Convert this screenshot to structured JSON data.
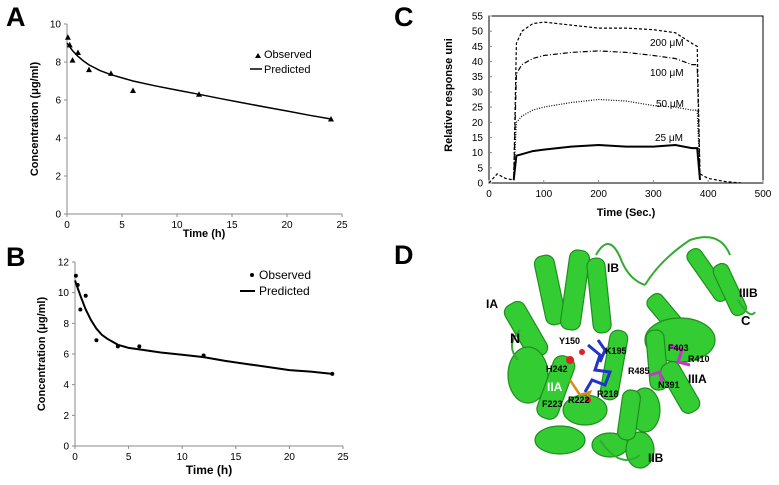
{
  "panels": {
    "a": "A",
    "b": "B",
    "c": "C",
    "d": "D"
  },
  "chart_data": [
    {
      "panel": "A",
      "type": "scatter",
      "xlabel": "Time (h)",
      "ylabel": "Concentration (μg/ml)",
      "xlim": [
        0,
        25
      ],
      "ylim": [
        0,
        10
      ],
      "xticks": [
        0,
        5,
        10,
        15,
        20,
        25
      ],
      "yticks": [
        0,
        2,
        4,
        6,
        8,
        10
      ],
      "grid": false,
      "legend_position": "top-right",
      "series": [
        {
          "name": "Observed",
          "marker": "triangle",
          "x": [
            0.083,
            0.25,
            0.5,
            1,
            2,
            4,
            6,
            12,
            24
          ],
          "y": [
            9.3,
            8.9,
            8.1,
            8.5,
            7.6,
            7.4,
            6.5,
            6.3,
            5.0
          ]
        },
        {
          "name": "Predicted",
          "marker": "line",
          "x": [
            0,
            0.5,
            1,
            1.5,
            2,
            3,
            4,
            6,
            8,
            10,
            12,
            14,
            16,
            18,
            20,
            22,
            24
          ],
          "y": [
            9.0,
            8.6,
            8.3,
            8.05,
            7.85,
            7.55,
            7.33,
            7.0,
            6.75,
            6.52,
            6.3,
            6.07,
            5.85,
            5.63,
            5.42,
            5.2,
            5.0
          ]
        }
      ]
    },
    {
      "panel": "B",
      "type": "scatter",
      "xlabel": "Time (h)",
      "ylabel": "Concentration (μg/ml)",
      "xlim": [
        0,
        25
      ],
      "ylim": [
        0,
        12
      ],
      "xticks": [
        0,
        5,
        10,
        15,
        20,
        25
      ],
      "yticks": [
        0,
        2,
        4,
        6,
        8,
        10,
        12
      ],
      "grid": false,
      "legend_position": "top-right",
      "series": [
        {
          "name": "Observed",
          "marker": "dot",
          "x": [
            0.083,
            0.25,
            0.5,
            1,
            2,
            4,
            6,
            12,
            24
          ],
          "y": [
            11.1,
            10.5,
            8.9,
            9.8,
            6.9,
            6.5,
            6.5,
            5.9,
            4.7
          ]
        },
        {
          "name": "Predicted",
          "marker": "line",
          "x": [
            0,
            0.5,
            1,
            1.5,
            2,
            2.5,
            3,
            4,
            5,
            6,
            8,
            10,
            12,
            14,
            16,
            18,
            20,
            22,
            24
          ],
          "y": [
            10.8,
            9.8,
            8.9,
            8.2,
            7.65,
            7.25,
            7.0,
            6.6,
            6.4,
            6.3,
            6.1,
            5.95,
            5.8,
            5.55,
            5.35,
            5.15,
            4.95,
            4.85,
            4.7
          ]
        }
      ]
    },
    {
      "panel": "C",
      "type": "line",
      "xlabel": "Time (Sec.)",
      "ylabel": "Relative response uni",
      "xlim": [
        0,
        500
      ],
      "ylim": [
        0,
        55
      ],
      "xticks": [
        0,
        100,
        200,
        300,
        400,
        500
      ],
      "yticks": [
        0,
        5,
        10,
        15,
        20,
        25,
        30,
        35,
        40,
        45,
        50,
        55
      ],
      "grid": false,
      "series": [
        {
          "name": "200 μM",
          "style": "dashed",
          "x": [
            0,
            15,
            30,
            45,
            50,
            60,
            80,
            100,
            150,
            200,
            250,
            300,
            340,
            370,
            380,
            385,
            400,
            430,
            460
          ],
          "y": [
            0,
            3,
            1.5,
            1,
            46,
            50,
            52.5,
            53,
            52,
            51,
            51,
            50.5,
            49.5,
            46,
            45,
            3,
            1.5,
            0.5,
            0
          ]
        },
        {
          "name": "100 μM",
          "style": "dash-dot",
          "x": [
            45,
            50,
            60,
            80,
            100,
            150,
            200,
            250,
            300,
            340,
            370,
            380,
            385
          ],
          "y": [
            1,
            36,
            39,
            41,
            42,
            43,
            43.5,
            43,
            42,
            41,
            39,
            39,
            2
          ]
        },
        {
          "name": "50 μM",
          "style": "dotted",
          "x": [
            45,
            50,
            60,
            80,
            100,
            150,
            200,
            250,
            300,
            340,
            370,
            380,
            385
          ],
          "y": [
            1,
            20,
            22,
            24,
            25,
            26.5,
            27.5,
            27,
            25.5,
            25,
            24,
            24,
            2
          ]
        },
        {
          "name": "25 μM",
          "style": "solid",
          "x": [
            45,
            50,
            60,
            80,
            100,
            150,
            200,
            250,
            300,
            340,
            370,
            380,
            385
          ],
          "y": [
            1,
            9,
            9.5,
            10.5,
            11,
            12,
            12.5,
            12,
            12,
            12.5,
            11.5,
            11.5,
            1
          ]
        }
      ]
    }
  ],
  "structure": {
    "domains": [
      "IA",
      "IB",
      "IIA",
      "IIB",
      "IIIA",
      "IIIB"
    ],
    "termini": [
      "N",
      "C"
    ],
    "residues": [
      "Y150",
      "K195",
      "H242",
      "R222",
      "R218",
      "F223",
      "F403",
      "R410",
      "R485",
      "N391"
    ]
  },
  "colors": {
    "helix": "#33cc33",
    "helix_dark": "#1e8f1e",
    "ligand_blue": "#2233cc",
    "ligand_red": "#dd2222",
    "ligand_orange": "#d88a1a",
    "ligand_magenta": "#cc33cc"
  }
}
